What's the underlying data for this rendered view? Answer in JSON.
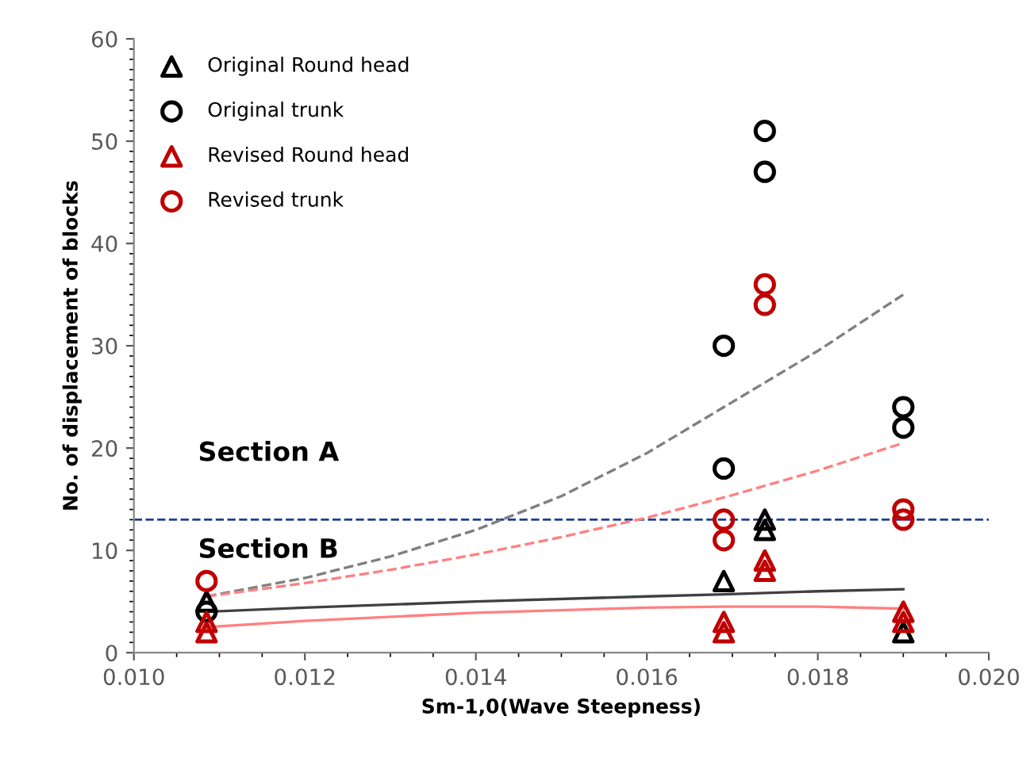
{
  "chart_data": {
    "type": "scatter",
    "xlabel": "Sm-1,0(Wave Steepness)",
    "ylabel": "No. of displacement of blocks",
    "xlim": [
      0.01,
      0.02
    ],
    "xticks": [
      {
        "value": 0.01,
        "label": "0.010"
      },
      {
        "value": 0.012,
        "label": "0.012"
      },
      {
        "value": 0.014,
        "label": "0.014"
      },
      {
        "value": 0.016,
        "label": "0.016"
      },
      {
        "value": 0.018,
        "label": "0.018"
      },
      {
        "value": 0.02,
        "label": "0.020"
      }
    ],
    "ylim": [
      0,
      60
    ],
    "yticks": [
      0,
      10,
      20,
      30,
      40,
      50,
      60
    ],
    "grid": false,
    "legend": "top left",
    "series": [
      {
        "name": "Original Round head",
        "color": "#000000",
        "marker": "triangle",
        "x": [
          0.01085,
          0.0169,
          0.01738,
          0.01738,
          0.019
        ],
        "values": [
          5,
          7,
          13,
          12,
          2
        ]
      },
      {
        "name": "Original trunk",
        "color": "#000000",
        "marker": "circle",
        "x": [
          0.01085,
          0.0169,
          0.0169,
          0.01738,
          0.01738,
          0.019,
          0.019
        ],
        "values": [
          4,
          30,
          18,
          51,
          47,
          24,
          22
        ]
      },
      {
        "name": "Revised Round head",
        "color": "#c00000",
        "marker": "triangle",
        "x": [
          0.01085,
          0.01085,
          0.0169,
          0.0169,
          0.01738,
          0.01738,
          0.019,
          0.019
        ],
        "values": [
          3,
          2,
          3,
          2,
          9,
          8,
          4,
          3
        ]
      },
      {
        "name": "Revised trunk",
        "color": "#c00000",
        "marker": "circle",
        "x": [
          0.01085,
          0.0169,
          0.0169,
          0.01738,
          0.01738,
          0.019,
          0.019
        ],
        "values": [
          7,
          13,
          11,
          36,
          34,
          14,
          13
        ]
      },
      {
        "type": "line",
        "line_style": "dashed",
        "marker": "none",
        "color": "#7f7f7f",
        "x": [
          0.01085,
          0.012,
          0.013,
          0.014,
          0.015,
          0.016,
          0.017,
          0.018,
          0.019
        ],
        "values": [
          5.5,
          7.3,
          9.4,
          12.0,
          15.3,
          19.5,
          24.5,
          29.5,
          35
        ]
      },
      {
        "type": "line",
        "line_style": "dashed",
        "marker": "none",
        "color": "#ff8080",
        "x": [
          0.01085,
          0.012,
          0.013,
          0.014,
          0.015,
          0.016,
          0.017,
          0.018,
          0.019
        ],
        "values": [
          5.5,
          6.8,
          8.1,
          9.6,
          11.3,
          13.2,
          15.4,
          17.8,
          20.5
        ]
      },
      {
        "type": "line",
        "line_style": "solid",
        "marker": "none",
        "color": "#404040",
        "x": [
          0.01085,
          0.012,
          0.014,
          0.016,
          0.0169,
          0.018,
          0.019
        ],
        "values": [
          4.0,
          4.4,
          5.0,
          5.5,
          5.7,
          6.0,
          6.2
        ]
      },
      {
        "type": "line",
        "line_style": "solid",
        "marker": "none",
        "color": "#ff8080",
        "x": [
          0.01085,
          0.012,
          0.014,
          0.016,
          0.0169,
          0.018,
          0.019
        ],
        "values": [
          2.5,
          3.1,
          3.9,
          4.4,
          4.5,
          4.5,
          4.3
        ]
      }
    ],
    "ref_lines": [
      {
        "axis": "y",
        "value": 13,
        "color": "#1f3f8f",
        "line_style": "dashed"
      }
    ],
    "annotations": [
      "Section A",
      "Section B"
    ]
  }
}
